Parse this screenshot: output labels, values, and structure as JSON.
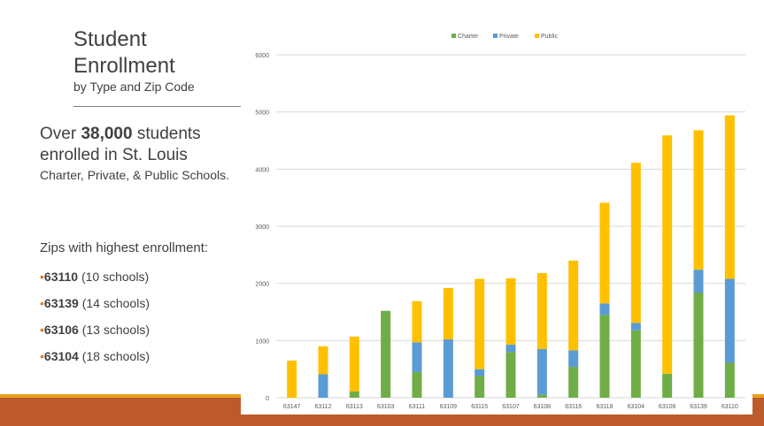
{
  "header": {
    "title_line1": "Student",
    "title_line2": "Enrollment",
    "subtitle": "by Type and Zip Code"
  },
  "summary": {
    "prefix": "Over ",
    "count": "38,000",
    "suffix_line1": " students",
    "line2": "enrolled in St. Louis",
    "detail": "Charter, Private, & Public Schools."
  },
  "zips": {
    "title": "Zips with highest enrollment:",
    "bullet": "•",
    "items": [
      {
        "zip": "63110",
        "note": " (10 schools)"
      },
      {
        "zip": "63139",
        "note": " (14 schools)"
      },
      {
        "zip": "63106",
        "note": " (13 schools)"
      },
      {
        "zip": "63104",
        "note": " (18 schools)"
      }
    ]
  },
  "colors": {
    "charter": "#70ad47",
    "private": "#5b9bd5",
    "public": "#ffc000",
    "accent_orange": "#e6a21c",
    "accent_rust": "#bd5a2b"
  },
  "chart_data": {
    "type": "bar",
    "stacked": true,
    "categories": [
      "63147",
      "63112",
      "63113",
      "63103",
      "63111",
      "63109",
      "63115",
      "63107",
      "63108",
      "63116",
      "63118",
      "63104",
      "63106",
      "63139",
      "63110"
    ],
    "series": [
      {
        "name": "Charter",
        "color": "#70ad47",
        "values": [
          0,
          0,
          110,
          1520,
          450,
          0,
          380,
          800,
          50,
          540,
          1450,
          1180,
          420,
          1840,
          610
        ]
      },
      {
        "name": "Private",
        "color": "#5b9bd5",
        "values": [
          0,
          410,
          0,
          0,
          520,
          1020,
          120,
          130,
          800,
          290,
          200,
          130,
          0,
          400,
          1470
        ]
      },
      {
        "name": "Public",
        "color": "#ffc000",
        "values": [
          650,
          490,
          960,
          0,
          720,
          900,
          1580,
          1160,
          1330,
          1570,
          1760,
          2800,
          4170,
          2440,
          2860
        ]
      }
    ],
    "ylim": [
      0,
      6000
    ],
    "yticks": [
      0,
      1000,
      2000,
      3000,
      4000,
      5000,
      6000
    ],
    "grid": true,
    "legend_position": "top"
  }
}
